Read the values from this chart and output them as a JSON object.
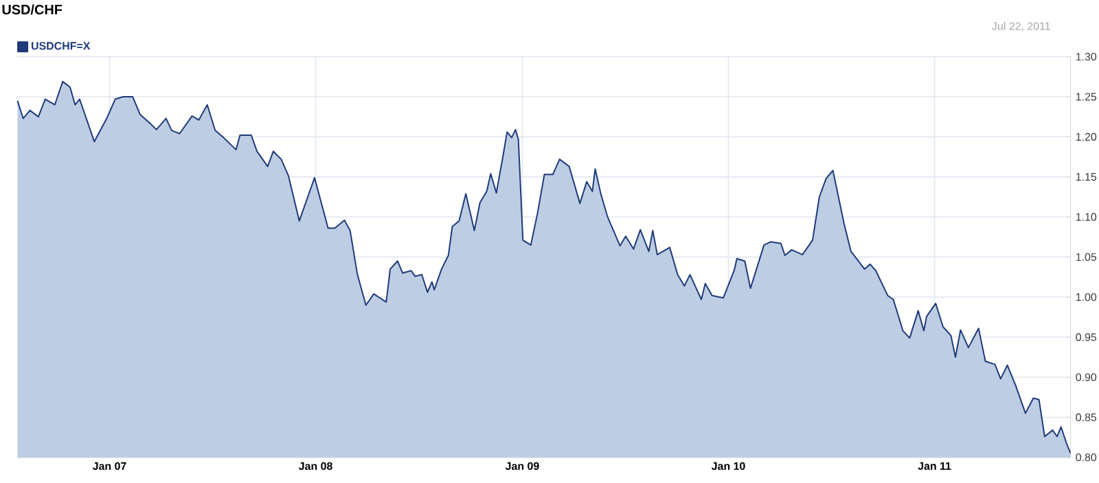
{
  "chart_data": {
    "type": "area",
    "title": "USD/CHF",
    "annotations": [
      "Jul 22, 2011"
    ],
    "legend": "top left",
    "grid": true,
    "xlim": [
      "2006-07-21",
      "2011-08-30"
    ],
    "xticks": [
      {
        "value": "2007-01-01",
        "label": "Jan 07"
      },
      {
        "value": "2008-01-01",
        "label": "Jan 08"
      },
      {
        "value": "2009-01-01",
        "label": "Jan 09"
      },
      {
        "value": "2010-01-01",
        "label": "Jan 10"
      },
      {
        "value": "2011-01-01",
        "label": "Jan 11"
      }
    ],
    "ylim": [
      0.8,
      1.3
    ],
    "yticks": [
      {
        "value": 0.8,
        "label": "0.80"
      },
      {
        "value": 0.85,
        "label": "0.85"
      },
      {
        "value": 0.9,
        "label": "0.90"
      },
      {
        "value": 0.95,
        "label": "0.95"
      },
      {
        "value": 1.0,
        "label": "1.00"
      },
      {
        "value": 1.05,
        "label": "1.05"
      },
      {
        "value": 1.1,
        "label": "1.10"
      },
      {
        "value": 1.15,
        "label": "1.15"
      },
      {
        "value": 1.2,
        "label": "1.20"
      },
      {
        "value": 1.25,
        "label": "1.25"
      },
      {
        "value": 1.3,
        "label": "1.30"
      }
    ],
    "x": [
      "2006-07-22",
      "2006-08-01",
      "2006-08-13",
      "2006-08-28",
      "2006-09-09",
      "2006-09-26",
      "2006-10-10",
      "2006-10-23",
      "2006-11-01",
      "2006-11-09",
      "2006-12-05",
      "2006-12-27",
      "2007-01-11",
      "2007-01-25",
      "2007-02-11",
      "2007-02-24",
      "2007-03-15",
      "2007-03-25",
      "2007-04-11",
      "2007-04-21",
      "2007-05-05",
      "2007-05-27",
      "2007-06-08",
      "2007-06-23",
      "2007-07-07",
      "2007-07-22",
      "2007-08-13",
      "2007-08-20",
      "2007-09-09",
      "2007-09-19",
      "2007-10-08",
      "2007-10-18",
      "2007-11-01",
      "2007-11-14",
      "2007-12-03",
      "2007-12-30",
      "2008-01-23",
      "2008-02-04",
      "2008-02-21",
      "2008-03-02",
      "2008-03-15",
      "2008-03-30",
      "2008-04-13",
      "2008-04-28",
      "2008-05-05",
      "2008-05-12",
      "2008-05-25",
      "2008-06-03",
      "2008-06-18",
      "2008-06-25",
      "2008-07-07",
      "2008-07-17",
      "2008-07-25",
      "2008-07-29",
      "2008-08-11",
      "2008-08-23",
      "2008-08-30",
      "2008-09-11",
      "2008-09-23",
      "2008-10-08",
      "2008-10-18",
      "2008-10-30",
      "2008-11-06",
      "2008-11-16",
      "2008-11-28",
      "2008-12-05",
      "2008-12-13",
      "2008-12-20",
      "2008-12-25",
      "2009-01-02",
      "2009-01-16",
      "2009-01-28",
      "2009-02-09",
      "2009-02-24",
      "2009-03-08",
      "2009-03-25",
      "2009-04-13",
      "2009-04-25",
      "2009-05-05",
      "2009-05-10",
      "2009-05-20",
      "2009-06-01",
      "2009-06-23",
      "2009-07-03",
      "2009-07-17",
      "2009-07-29",
      "2009-08-13",
      "2009-08-20",
      "2009-08-28",
      "2009-09-19",
      "2009-10-03",
      "2009-10-15",
      "2009-10-25",
      "2009-11-14",
      "2009-11-21",
      "2009-12-03",
      "2009-12-23",
      "2010-01-11",
      "2010-01-16",
      "2010-01-30",
      "2010-02-09",
      "2010-03-05",
      "2010-03-17",
      "2010-04-04",
      "2010-04-11",
      "2010-04-23",
      "2010-05-12",
      "2010-05-30",
      "2010-06-11",
      "2010-06-23",
      "2010-07-05",
      "2010-07-25",
      "2010-08-06",
      "2010-08-30",
      "2010-09-09",
      "2010-09-19",
      "2010-10-10",
      "2010-10-20",
      "2010-11-06",
      "2010-11-18",
      "2010-12-03",
      "2010-12-13",
      "2010-12-18",
      "2011-01-03",
      "2011-01-16",
      "2011-01-30",
      "2011-02-07",
      "2011-02-16",
      "2011-03-02",
      "2011-03-20",
      "2011-04-01",
      "2011-04-18",
      "2011-04-28",
      "2011-05-10",
      "2011-05-25",
      "2011-06-11",
      "2011-06-25",
      "2011-07-05",
      "2011-07-15",
      "2011-07-29",
      "2011-08-06",
      "2011-08-13",
      "2011-08-23",
      "2011-08-30"
    ],
    "series": [
      {
        "name": "USDCHF=X",
        "color": "#1f3a7a",
        "values": [
          1.245,
          1.223,
          1.233,
          1.225,
          1.247,
          1.24,
          1.269,
          1.262,
          1.24,
          1.247,
          1.194,
          1.223,
          1.247,
          1.25,
          1.25,
          1.228,
          1.216,
          1.209,
          1.223,
          1.208,
          1.204,
          1.226,
          1.221,
          1.24,
          1.208,
          1.199,
          1.184,
          1.202,
          1.202,
          1.182,
          1.163,
          1.182,
          1.172,
          1.151,
          1.095,
          1.149,
          1.086,
          1.086,
          1.096,
          1.083,
          1.028,
          0.99,
          1.004,
          0.997,
          0.994,
          1.035,
          1.045,
          1.03,
          1.033,
          1.026,
          1.028,
          1.006,
          1.019,
          1.009,
          1.035,
          1.052,
          1.088,
          1.095,
          1.129,
          1.083,
          1.118,
          1.132,
          1.154,
          1.13,
          1.177,
          1.206,
          1.199,
          1.209,
          1.197,
          1.071,
          1.065,
          1.105,
          1.153,
          1.153,
          1.172,
          1.163,
          1.117,
          1.144,
          1.132,
          1.16,
          1.129,
          1.1,
          1.064,
          1.076,
          1.06,
          1.084,
          1.057,
          1.083,
          1.053,
          1.062,
          1.028,
          1.014,
          1.028,
          0.997,
          1.017,
          1.002,
          0.999,
          1.033,
          1.048,
          1.045,
          1.011,
          1.065,
          1.069,
          1.067,
          1.052,
          1.059,
          1.053,
          1.071,
          1.125,
          1.148,
          1.158,
          1.091,
          1.057,
          1.035,
          1.041,
          1.033,
          1.002,
          0.997,
          0.958,
          0.949,
          0.983,
          0.958,
          0.976,
          0.992,
          0.963,
          0.952,
          0.925,
          0.959,
          0.937,
          0.961,
          0.92,
          0.916,
          0.898,
          0.915,
          0.889,
          0.855,
          0.874,
          0.872,
          0.826,
          0.834,
          0.826,
          0.838,
          0.817,
          0.805
        ]
      }
    ]
  }
}
